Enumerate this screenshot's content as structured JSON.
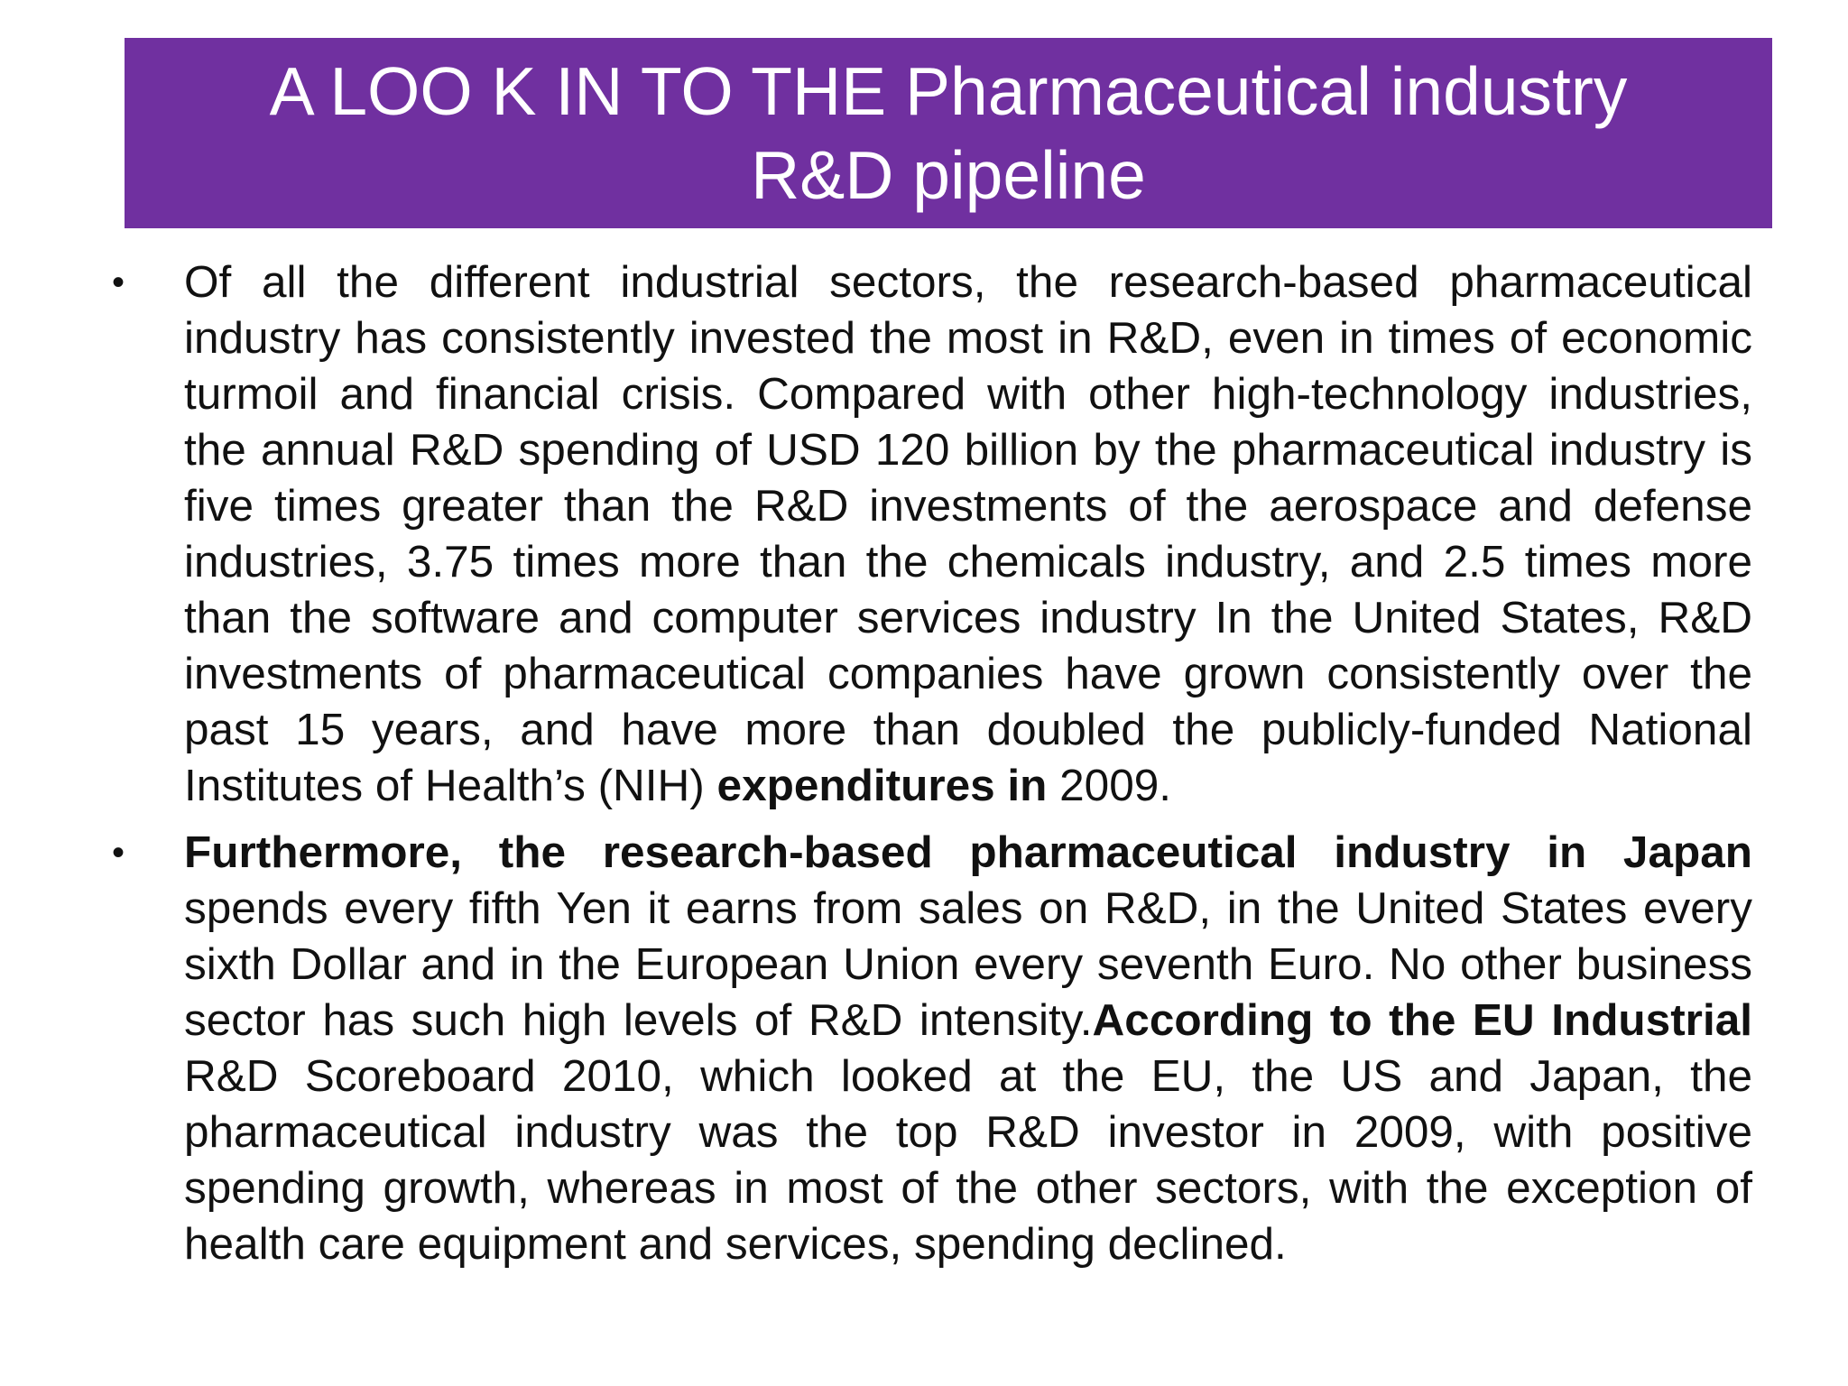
{
  "title": {
    "line1": "A LOO K IN TO THE Pharmaceutical industry",
    "line2": "R&D pipeline"
  },
  "colors": {
    "banner": "#7030a0",
    "banner_text": "#ffffff",
    "body_text": "#111111"
  },
  "bullets": [
    {
      "marker": "•",
      "segments": [
        {
          "text": "Of all the different industrial sectors, the research-based pharmaceutical industry has consistently invested the most in R&D, even in times of economic turmoil and financial crisis. Compared with other high-technology industries, the annual R&D spending of USD 120 billion by the pharmaceutical industry is five times greater than the R&D investments of the aerospace and defense industries, 3.75 times more than the chemicals industry, and 2.5 times more than the software and computer services industry In the United States, R&D investments of pharmaceutical companies have grown consistently over the past 15 years, and have more than doubled the publicly-funded National Institutes of Health’s (NIH) "
        },
        {
          "text": "expenditures in",
          "bold": true
        },
        {
          "text": " 2009."
        }
      ]
    },
    {
      "marker": "•",
      "segments": [
        {
          "text": "Furthermore, the research-based pharmaceutical industry in Japan",
          "bold": true
        },
        {
          "text": " spends every fifth Yen it earns from sales on R&D, in the United States every sixth Dollar and in the European Union every seventh Euro. No other business sector has such high levels of R&D intensity."
        },
        {
          "text": "According to the EU Industrial",
          "bold": true
        },
        {
          "text": " R&D Scoreboard 2010, which looked at the EU, the US and Japan, the pharmaceutical industry was the top R&D investor in 2009, with positive spending growth, whereas in most of the other sectors, with the exception of health care equipment and services, spending declined."
        }
      ]
    }
  ]
}
